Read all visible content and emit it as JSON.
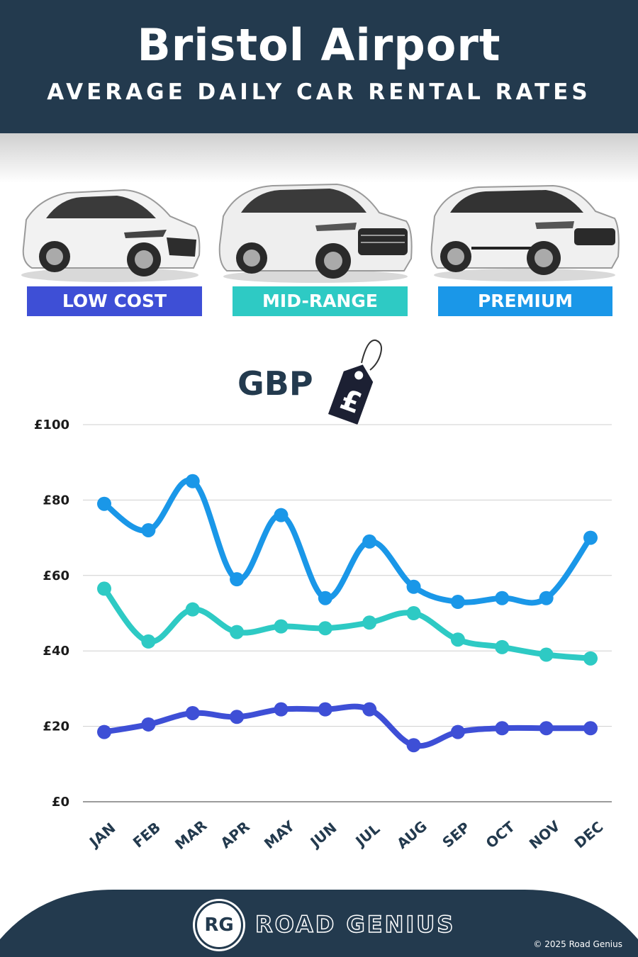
{
  "header": {
    "title": "Bristol Airport",
    "subtitle": "AVERAGE DAILY CAR RENTAL RATES"
  },
  "categories": [
    {
      "label": "LOW COST",
      "color": "#3e4fd6",
      "icon": "hatchback-car-image"
    },
    {
      "label": "MID-RANGE",
      "color": "#2ecac4",
      "icon": "suv-car-image"
    },
    {
      "label": "PREMIUM",
      "color": "#1a97e8",
      "icon": "luxury-suv-car-image"
    }
  ],
  "currency": {
    "label": "GBP",
    "tag_symbol": "£",
    "icon": "price-tag-icon"
  },
  "chart_data": {
    "type": "line",
    "title": "",
    "xlabel": "",
    "ylabel": "",
    "categories": [
      "JAN",
      "FEB",
      "MAR",
      "APR",
      "MAY",
      "JUN",
      "JUL",
      "AUG",
      "SEP",
      "OCT",
      "NOV",
      "DEC"
    ],
    "y_ticks": [
      "£0",
      "£20",
      "£40",
      "£60",
      "£80",
      "£100"
    ],
    "ylim": [
      0,
      100
    ],
    "grid": true,
    "series": [
      {
        "name": "PREMIUM",
        "color": "#1a97e8",
        "values": [
          79,
          72,
          85,
          59,
          76,
          54,
          69,
          57,
          53,
          54,
          54,
          70
        ]
      },
      {
        "name": "MID-RANGE",
        "color": "#2ecac4",
        "values": [
          56.5,
          42.5,
          51,
          45,
          46.5,
          46,
          47.5,
          50,
          43,
          41,
          39,
          38
        ]
      },
      {
        "name": "LOW COST",
        "color": "#3e4fd6",
        "values": [
          18.5,
          20.5,
          23.5,
          22.5,
          24.5,
          24.5,
          24.5,
          15,
          18.5,
          19.5,
          19.5,
          19.5
        ]
      }
    ]
  },
  "footer": {
    "logo_initials": "RG",
    "brand": "ROAD GENIUS",
    "copyright": "© 2025 Road Genius",
    "color": "#233a4e"
  }
}
